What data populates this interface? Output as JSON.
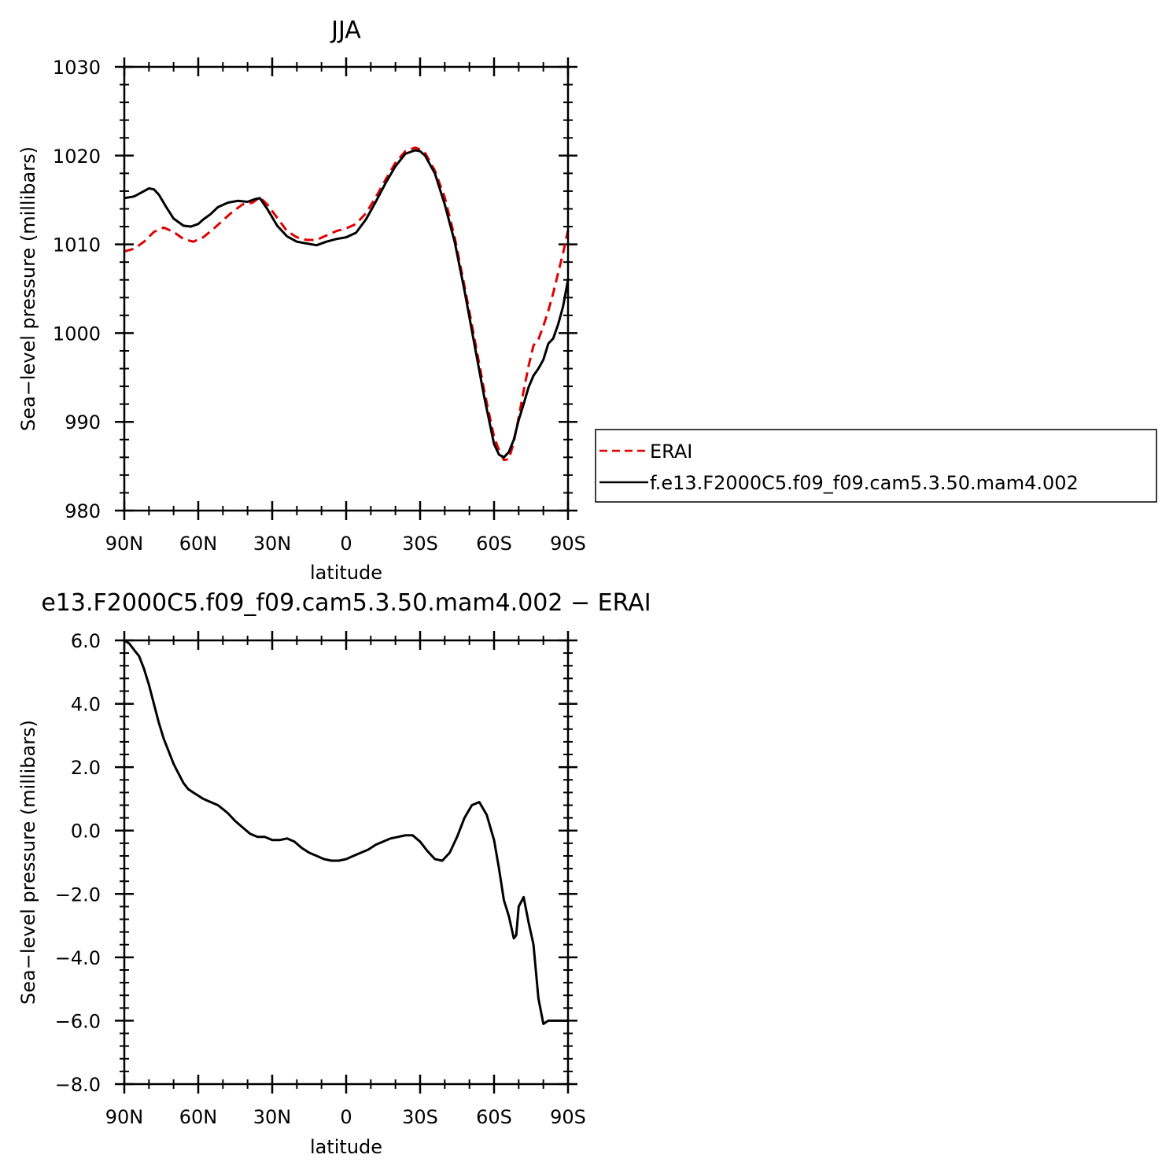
{
  "top_title": "JJA",
  "bottom_title": "e13.F2000C5.f09_f09.cam5.3.50.mam4.002  −  ERAI",
  "legend": {
    "entries": [
      {
        "label": "ERAI",
        "color": "#e00000",
        "dashed": true
      },
      {
        "label": "f.e13.F2000C5.f09_f09.cam5.3.50.mam4.002",
        "color": "#000000",
        "dashed": false
      }
    ]
  },
  "chart_data": [
    {
      "type": "line",
      "title": "JJA",
      "xlabel": "latitude",
      "ylabel": "Sea−level pressure (millibars)",
      "xlim": [
        90,
        -90
      ],
      "ylim": [
        980,
        1030
      ],
      "xticks": [
        {
          "v": 90,
          "label": "90N"
        },
        {
          "v": 60,
          "label": "60N"
        },
        {
          "v": 30,
          "label": "30N"
        },
        {
          "v": 0,
          "label": "0"
        },
        {
          "v": -30,
          "label": "30S"
        },
        {
          "v": -60,
          "label": "60S"
        },
        {
          "v": -90,
          "label": "90S"
        }
      ],
      "yticks": [
        {
          "v": 980,
          "label": "980"
        },
        {
          "v": 990,
          "label": "990"
        },
        {
          "v": 1000,
          "label": "1000"
        },
        {
          "v": 1010,
          "label": "1010"
        },
        {
          "v": 1020,
          "label": "1020"
        },
        {
          "v": 1030,
          "label": "1030"
        }
      ],
      "series": [
        {
          "name": "ERAI",
          "color": "#e00000",
          "dashed": true,
          "x": [
            90,
            86,
            82,
            78,
            74,
            70,
            66,
            62,
            58,
            54,
            50,
            46,
            42,
            38,
            35,
            32,
            28,
            24,
            20,
            16,
            12,
            8,
            4,
            0,
            -4,
            -8,
            -12,
            -16,
            -20,
            -24,
            -28,
            -30,
            -32,
            -36,
            -40,
            -44,
            -48,
            -52,
            -56,
            -60,
            -62,
            -64,
            -66,
            -68,
            -70,
            -72,
            -74,
            -76,
            -78,
            -80,
            -82,
            -84,
            -86,
            -88,
            -90
          ],
          "y": [
            1009.2,
            1009.5,
            1010.3,
            1011.4,
            1011.9,
            1011.4,
            1010.6,
            1010.3,
            1010.8,
            1011.7,
            1012.7,
            1013.7,
            1014.5,
            1014.7,
            1015.3,
            1014.5,
            1013.0,
            1011.5,
            1010.8,
            1010.5,
            1010.5,
            1011.0,
            1011.5,
            1011.8,
            1012.3,
            1013.5,
            1015.3,
            1017.3,
            1019.2,
            1020.5,
            1020.9,
            1020.7,
            1020.3,
            1018.3,
            1015.3,
            1010.8,
            1005.3,
            999.5,
            993.5,
            988.3,
            986.8,
            985.7,
            985.8,
            987.7,
            990.5,
            993.5,
            996.3,
            998.6,
            999.3,
            1000.8,
            1002.5,
            1004.5,
            1006.8,
            1009.0,
            1011.6
          ]
        },
        {
          "name": "f.e13.F2000C5.f09_f09.cam5.3.50.mam4.002",
          "color": "#000000",
          "dashed": false,
          "x": [
            90,
            86,
            84,
            80,
            78,
            76,
            73,
            70,
            66,
            63,
            60,
            58,
            55,
            52,
            48,
            44,
            40,
            37,
            35,
            32,
            28,
            24,
            20,
            16,
            12,
            8,
            4,
            0,
            -4,
            -8,
            -12,
            -16,
            -20,
            -24,
            -28,
            -30,
            -32,
            -36,
            -40,
            -44,
            -48,
            -52,
            -56,
            -60,
            -62,
            -64,
            -66,
            -68,
            -70,
            -72,
            -74,
            -76,
            -78,
            -80,
            -82,
            -84,
            -86,
            -88,
            -90
          ],
          "y": [
            1015.2,
            1015.4,
            1015.7,
            1016.3,
            1016.2,
            1015.6,
            1014.2,
            1012.9,
            1012.1,
            1012.0,
            1012.3,
            1012.8,
            1013.4,
            1014.2,
            1014.7,
            1014.9,
            1014.8,
            1015.1,
            1015.2,
            1014.0,
            1012.1,
            1010.9,
            1010.3,
            1010.1,
            1009.9,
            1010.3,
            1010.6,
            1010.8,
            1011.3,
            1012.8,
            1014.8,
            1016.9,
            1018.8,
            1020.2,
            1020.6,
            1020.5,
            1020.0,
            1018.0,
            1014.5,
            1010.3,
            1004.8,
            998.8,
            992.8,
            987.5,
            986.3,
            986.0,
            986.6,
            988.0,
            990.2,
            992.0,
            993.9,
            995.2,
            996.0,
            997.0,
            998.8,
            999.4,
            1001.0,
            1003.0,
            1006.0
          ]
        }
      ]
    },
    {
      "type": "line",
      "title": "e13.F2000C5.f09_f09.cam5.3.50.mam4.002  −  ERAI",
      "xlabel": "latitude",
      "ylabel": "Sea−level pressure (millibars)",
      "xlim": [
        90,
        -90
      ],
      "ylim": [
        -8.0,
        6.0
      ],
      "xticks": [
        {
          "v": 90,
          "label": "90N"
        },
        {
          "v": 60,
          "label": "60N"
        },
        {
          "v": 30,
          "label": "30N"
        },
        {
          "v": 0,
          "label": "0"
        },
        {
          "v": -30,
          "label": "30S"
        },
        {
          "v": -60,
          "label": "60S"
        },
        {
          "v": -90,
          "label": "90S"
        }
      ],
      "yticks": [
        {
          "v": -8,
          "label": "−8.0"
        },
        {
          "v": -6,
          "label": "−6.0"
        },
        {
          "v": -4,
          "label": "−4.0"
        },
        {
          "v": -2,
          "label": "−2.0"
        },
        {
          "v": 0,
          "label": "0.0"
        },
        {
          "v": 2,
          "label": "2.0"
        },
        {
          "v": 4,
          "label": "4.0"
        },
        {
          "v": 6,
          "label": "6.0"
        }
      ],
      "series": [
        {
          "color": "#000000",
          "dashed": false,
          "x": [
            90,
            88,
            86,
            84,
            82,
            80,
            78,
            76,
            74,
            72,
            70,
            68,
            66,
            64,
            62,
            60,
            58,
            55,
            52,
            48,
            45,
            42,
            39,
            36,
            33,
            30,
            27,
            24,
            21,
            18,
            15,
            12,
            9,
            6,
            3,
            0,
            -3,
            -6,
            -9,
            -12,
            -15,
            -18,
            -21,
            -24,
            -27,
            -30,
            -33,
            -36,
            -39,
            -42,
            -45,
            -48,
            -51,
            -54,
            -57,
            -60,
            -62,
            -64,
            -66,
            -68,
            -69,
            -70,
            -72,
            -74,
            -76,
            -78,
            -80,
            -82,
            -84,
            -86,
            -87,
            -88,
            -89,
            -90
          ],
          "y": [
            6.0,
            5.9,
            5.7,
            5.5,
            5.1,
            4.6,
            4.0,
            3.4,
            2.9,
            2.5,
            2.1,
            1.8,
            1.5,
            1.3,
            1.2,
            1.1,
            1.0,
            0.9,
            0.8,
            0.55,
            0.3,
            0.1,
            -0.1,
            -0.2,
            -0.2,
            -0.3,
            -0.3,
            -0.25,
            -0.35,
            -0.55,
            -0.7,
            -0.8,
            -0.9,
            -0.95,
            -0.95,
            -0.9,
            -0.8,
            -0.7,
            -0.6,
            -0.45,
            -0.35,
            -0.25,
            -0.2,
            -0.15,
            -0.15,
            -0.35,
            -0.65,
            -0.9,
            -0.95,
            -0.7,
            -0.2,
            0.4,
            0.8,
            0.9,
            0.5,
            -0.3,
            -1.2,
            -2.2,
            -2.7,
            -3.4,
            -3.3,
            -2.4,
            -2.1,
            -2.9,
            -3.6,
            -5.3,
            -6.1,
            -6.0,
            -6.0,
            -6.0,
            -6.0,
            -6.0,
            -6.0,
            -6.0
          ]
        }
      ]
    }
  ]
}
